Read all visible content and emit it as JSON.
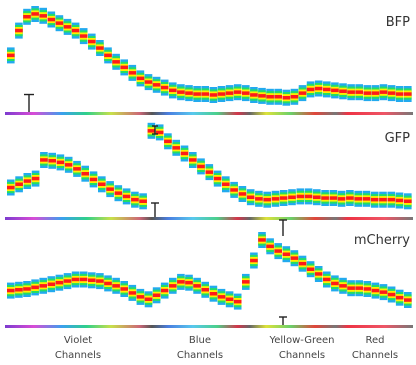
{
  "chart_data": [
    {
      "type": "heatmap",
      "panel_label": "BFP",
      "series": [
        {
          "name": "BFP",
          "values": [
            0.55,
            0.82,
            0.97,
            1.0,
            0.98,
            0.94,
            0.9,
            0.86,
            0.82,
            0.76,
            0.7,
            0.63,
            0.55,
            0.48,
            0.42,
            0.36,
            0.3,
            0.26,
            0.23,
            0.2,
            0.17,
            0.15,
            0.14,
            0.13,
            0.13,
            0.12,
            0.13,
            0.14,
            0.15,
            0.14,
            0.12,
            0.11,
            0.1,
            0.1,
            0.09,
            0.1,
            0.14,
            0.18,
            0.19,
            0.18,
            0.17,
            0.16,
            0.15,
            0.15,
            0.14,
            0.14,
            0.15,
            0.14,
            0.13,
            0.13
          ]
        }
      ],
      "error_bar_halfwidth": 0.19
    },
    {
      "type": "heatmap",
      "panel_label": "GFP",
      "series": [
        {
          "name": "GFP",
          "values": [
            0.29,
            0.33,
            0.37,
            0.4,
            0.63,
            0.62,
            0.6,
            0.57,
            0.52,
            0.46,
            0.39,
            0.33,
            0.27,
            0.22,
            0.18,
            0.14,
            0.12,
            0.99,
            0.97,
            0.86,
            0.78,
            0.71,
            0.63,
            0.55,
            0.48,
            0.4,
            0.33,
            0.26,
            0.21,
            0.17,
            0.15,
            0.14,
            0.15,
            0.16,
            0.17,
            0.18,
            0.18,
            0.17,
            0.16,
            0.16,
            0.15,
            0.16,
            0.15,
            0.15,
            0.14,
            0.14,
            0.14,
            0.13,
            0.12
          ]
        }
      ],
      "error_bar_halfwidth": 0.08
    },
    {
      "type": "heatmap",
      "panel_label": "mCherry",
      "series": [
        {
          "name": "mCherry",
          "values": [
            0.36,
            0.37,
            0.38,
            0.4,
            0.42,
            0.44,
            0.46,
            0.48,
            0.5,
            0.5,
            0.49,
            0.48,
            0.45,
            0.42,
            0.38,
            0.33,
            0.28,
            0.25,
            0.3,
            0.36,
            0.42,
            0.47,
            0.46,
            0.42,
            0.37,
            0.32,
            0.28,
            0.25,
            0.22,
            0.47,
            0.74,
            1.0,
            0.92,
            0.86,
            0.82,
            0.77,
            0.7,
            0.63,
            0.57,
            0.5,
            0.45,
            0.42,
            0.39,
            0.39,
            0.38,
            0.36,
            0.34,
            0.31,
            0.27,
            0.24
          ]
        }
      ],
      "error_bar_halfwidth": 0.1
    }
  ],
  "channel_groups": [
    {
      "line1": "Violet",
      "line2": "Channels"
    },
    {
      "line1": "Blue",
      "line2": "Channels"
    },
    {
      "line1": "Yellow-Green",
      "line2": "Channels"
    },
    {
      "line1": "Red",
      "line2": "Channels"
    }
  ],
  "colors": {
    "violet": "#8a3fd0",
    "blue": "#4488ee",
    "green": "#33cc66",
    "yellow": "#eedd22",
    "red": "#ee3333",
    "gray": "#666666",
    "baseline": "#cc3333",
    "heat_peak": "#ff1a1a",
    "heat_mid": "#ffee00",
    "heat_shoulder": "#22dd66",
    "heat_edge": "#22aaee"
  }
}
